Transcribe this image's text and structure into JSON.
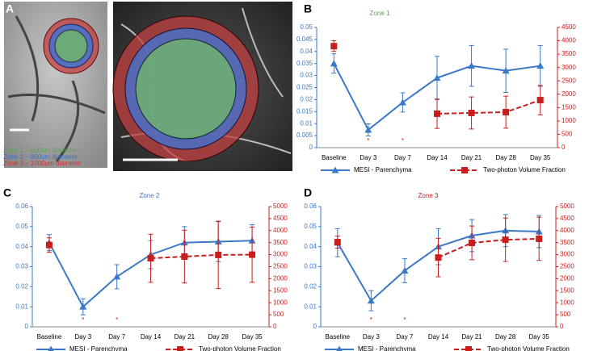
{
  "panel_a": {
    "label": "A",
    "legend": [
      {
        "text": "Zone 1 – 600um diameter",
        "color": "#5aa050"
      },
      {
        "text": "Zone 2 – 800um diameter",
        "color": "#3a6fc4"
      },
      {
        "text": "Zone 3 – 1000um diameter",
        "color": "#d03030"
      }
    ]
  },
  "chart_data": [
    {
      "type": "line",
      "panel": "B",
      "title": "Zone 1",
      "title_color": "#5aa050",
      "categories": [
        "Baseline",
        "Day 3",
        "Day 7",
        "Day 14",
        "Day 21",
        "Day 28",
        "Day 35"
      ],
      "significance": [
        null,
        "*",
        "*",
        null,
        null,
        null,
        null
      ],
      "ylim": [
        0,
        0.05
      ],
      "yticks": [
        0,
        0.005,
        0.01,
        0.015,
        0.02,
        0.025,
        0.03,
        0.035,
        0.04,
        0.045,
        0.05
      ],
      "y2lim": [
        0,
        4500
      ],
      "y2ticks": [
        0,
        500,
        1000,
        1500,
        2000,
        2500,
        3000,
        3500,
        4000,
        4500
      ],
      "series": [
        {
          "name": "MESI - Parenchyma",
          "color": "#3b78c8",
          "marker": "triangle",
          "dashed": false,
          "values": [
            0.035,
            0.0074,
            0.0188,
            0.029,
            0.034,
            0.032,
            0.034
          ],
          "errors": [
            0.004,
            0.0025,
            0.004,
            0.009,
            0.0085,
            0.009,
            0.0085
          ]
        },
        {
          "name": "Two-photon Volume Fraction",
          "color": "#c81e1e",
          "marker": "square",
          "dashed": true,
          "axis": "y2",
          "values": [
            3800,
            null,
            null,
            1270,
            1300,
            1330,
            1780
          ],
          "errors": [
            200,
            null,
            null,
            550,
            600,
            600,
            550
          ]
        }
      ]
    },
    {
      "type": "line",
      "panel": "C",
      "title": "Zone 2",
      "title_color": "#3b78c8",
      "categories": [
        "Baseline",
        "Day 3",
        "Day 7",
        "Day 14",
        "Day 21",
        "Day 28",
        "Day 35"
      ],
      "significance": [
        null,
        "*",
        "*",
        null,
        null,
        null,
        null
      ],
      "ylim": [
        0,
        0.06
      ],
      "yticks": [
        0,
        0.01,
        0.02,
        0.03,
        0.04,
        0.05,
        0.06
      ],
      "y2lim": [
        0,
        5000
      ],
      "y2ticks": [
        0,
        500,
        1000,
        1500,
        2000,
        2500,
        3000,
        3500,
        4000,
        4500,
        5000
      ],
      "series": [
        {
          "name": "MESI - Parenchyma",
          "color": "#3b78c8",
          "marker": "triangle",
          "dashed": false,
          "values": [
            0.042,
            0.01,
            0.025,
            0.036,
            0.042,
            0.0425,
            0.043
          ],
          "errors": [
            0.004,
            0.004,
            0.006,
            0.007,
            0.008,
            0.01,
            0.008
          ]
        },
        {
          "name": "Two-photon Volume Fraction",
          "color": "#c81e1e",
          "marker": "square",
          "dashed": true,
          "axis": "y2",
          "values": [
            3400,
            null,
            null,
            2850,
            2920,
            2990,
            3000
          ],
          "errors": [
            300,
            null,
            null,
            1000,
            1100,
            1400,
            1150
          ]
        }
      ]
    },
    {
      "type": "line",
      "panel": "D",
      "title": "Zone 3",
      "title_color": "#c81e1e",
      "categories": [
        "Baseline",
        "Day 3",
        "Day 7",
        "Day 14",
        "Day 21",
        "Day 28",
        "Day 35"
      ],
      "significance": [
        null,
        "*",
        "*",
        null,
        null,
        null,
        null
      ],
      "ylim": [
        0,
        0.06
      ],
      "yticks": [
        0,
        0.01,
        0.02,
        0.03,
        0.04,
        0.05,
        0.06
      ],
      "y2lim": [
        0,
        5000
      ],
      "y2ticks": [
        0,
        500,
        1000,
        1500,
        2000,
        2500,
        3000,
        3500,
        4000,
        4500,
        5000
      ],
      "series": [
        {
          "name": "MESI - Parenchyma",
          "color": "#3b78c8",
          "marker": "triangle",
          "dashed": false,
          "values": [
            0.042,
            0.013,
            0.028,
            0.04,
            0.0455,
            0.048,
            0.0475
          ],
          "errors": [
            0.007,
            0.005,
            0.006,
            0.009,
            0.008,
            0.008,
            0.008
          ]
        },
        {
          "name": "Two-photon Volume Fraction",
          "color": "#c81e1e",
          "marker": "square",
          "dashed": true,
          "axis": "y2",
          "values": [
            3520,
            null,
            null,
            2880,
            3490,
            3620,
            3660
          ],
          "errors": [
            250,
            null,
            null,
            800,
            700,
            900,
            900
          ]
        }
      ]
    }
  ]
}
